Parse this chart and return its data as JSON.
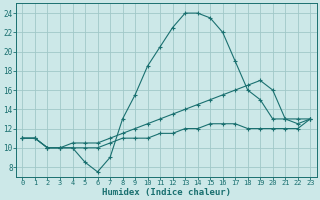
{
  "xlabel": "Humidex (Indice chaleur)",
  "ylabel": "",
  "bg_color": "#cce8e8",
  "grid_color": "#a0c8c8",
  "line_color": "#1a7070",
  "xlim": [
    -0.5,
    23.5
  ],
  "ylim": [
    7,
    25
  ],
  "xticks": [
    0,
    1,
    2,
    3,
    4,
    5,
    6,
    7,
    8,
    9,
    10,
    11,
    12,
    13,
    14,
    15,
    16,
    17,
    18,
    19,
    20,
    21,
    22,
    23
  ],
  "yticks": [
    8,
    10,
    12,
    14,
    16,
    18,
    20,
    22,
    24
  ],
  "line1_x": [
    0,
    1,
    2,
    3,
    4,
    5,
    6,
    7,
    8,
    9,
    10,
    11,
    12,
    13,
    14,
    15,
    16,
    17,
    18,
    19,
    20,
    21,
    22,
    23
  ],
  "line1_y": [
    11,
    11,
    10,
    10,
    10,
    8.5,
    7.5,
    9,
    13,
    15.5,
    18.5,
    20.5,
    22.5,
    24,
    24,
    23.5,
    22,
    19,
    16,
    15,
    13,
    13,
    12.5,
    13
  ],
  "line2_x": [
    0,
    1,
    2,
    3,
    4,
    5,
    6,
    7,
    8,
    9,
    10,
    11,
    12,
    13,
    14,
    15,
    16,
    17,
    18,
    19,
    20,
    21,
    22,
    23
  ],
  "line2_y": [
    11,
    11,
    10,
    10,
    10.5,
    10.5,
    10.5,
    11,
    11.5,
    12,
    12.5,
    13,
    13.5,
    14,
    14.5,
    15,
    15.5,
    16,
    16.5,
    17,
    16,
    13,
    13,
    13
  ],
  "line3_x": [
    0,
    1,
    2,
    3,
    4,
    5,
    6,
    7,
    8,
    9,
    10,
    11,
    12,
    13,
    14,
    15,
    16,
    17,
    18,
    19,
    20,
    21,
    22,
    23
  ],
  "line3_y": [
    11,
    11,
    10,
    10,
    10,
    10,
    10,
    10.5,
    11,
    11,
    11,
    11.5,
    11.5,
    12,
    12,
    12.5,
    12.5,
    12.5,
    12,
    12,
    12,
    12,
    12,
    13
  ]
}
